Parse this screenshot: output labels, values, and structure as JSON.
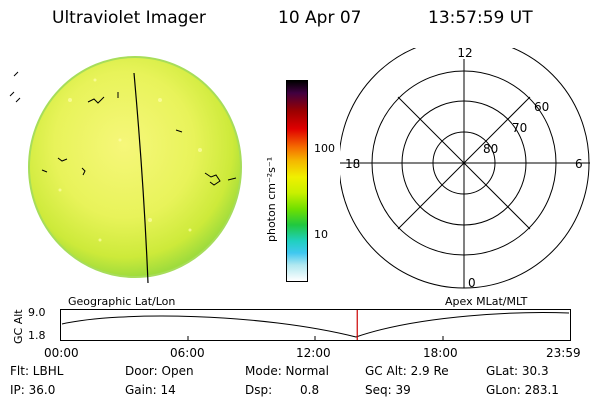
{
  "header": {
    "title": "Ultraviolet Imager",
    "date": "10 Apr 07",
    "time": "13:57:59 UT"
  },
  "colorbar": {
    "label": "photon cm⁻²s⁻¹",
    "ticks": [
      "100",
      "10"
    ]
  },
  "polar_plot": {
    "mlt_labels": [
      "12",
      "18",
      "6",
      "0"
    ],
    "lat_labels": [
      "60",
      "70",
      "80"
    ]
  },
  "timeline": {
    "left_label": "Geographic Lat/Lon",
    "right_label": "Apex MLat/MLT",
    "axis_title": "GC Alt",
    "y_ticks": [
      "9.0",
      "1.8"
    ],
    "x_ticks": [
      "00:00",
      "06:00",
      "12:00",
      "18:00",
      "23:59"
    ],
    "marker_color": "#cc0000",
    "current_time_fraction": 0.582
  },
  "info": {
    "flt": "Flt: LBHL",
    "door": "Door: Open",
    "mode": "Mode: Normal",
    "gcalt": "GC Alt: 2.9 Re",
    "glat": "GLat:  30.3",
    "ip": "IP: 36.0",
    "gain": "Gain: 14",
    "dsp": "Dsp:",
    "dsp_value": "0.8",
    "seq": "Seq: 39",
    "glon": "GLon: 283.1"
  }
}
